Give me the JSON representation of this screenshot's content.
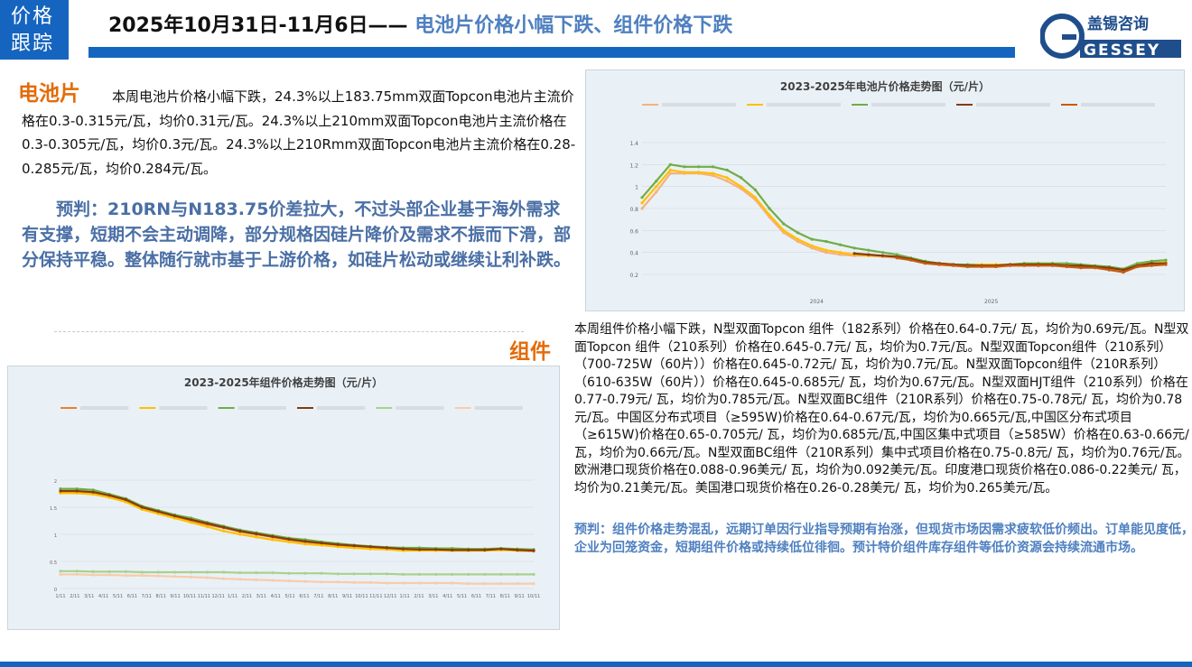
{
  "header": {
    "tag": "价格跟踪",
    "title_date": "2025年10月31日-11月6日",
    "title_dash": "——",
    "title_sub": "电池片价格小幅下跌、组件价格下跌",
    "logo_cn": "盖锡咨询",
    "logo_en": "GESSEY"
  },
  "cell": {
    "heading": "电池片",
    "body": "本周电池片价格小幅下跌，24.3%以上183.75mm双面Topcon电池片主流价格在0.3-0.315元/瓦，均价0.31元/瓦。24.3%以上210mm双面Topcon电池片主流价格在0.3-0.305元/瓦，均价0.3元/瓦。24.3%以上210Rmm双面Topcon电池片主流价格在0.28-0.285元/瓦，均价0.284元/瓦。",
    "forecast": "预判：210RN与N183.75价差拉大，不过头部企业基于海外需求有支撑，短期不会主动调降，部分规格因硅片降价及需求不振而下滑，部分保持平稳。整体随行就市基于上游价格，如硅片松动或继续让利补跌。"
  },
  "module": {
    "heading": "组件",
    "body": "本周组件价格小幅下跌，N型双面Topcon 组件（182系列）价格在0.64-0.7元/ 瓦，均价为0.69元/瓦。N型双面Topcon 组件（210系列）价格在0.645-0.7元/ 瓦，均价为0.7元/瓦。N型双面Topcon组件（210系列）（700-725W（60片））价格在0.645-0.72元/ 瓦，均价为0.7元/瓦。N型双面Topcon组件（210R系列）（610-635W（60片））价格在0.645-0.685元/ 瓦，均价为0.67元/瓦。N型双面HJT组件（210系列）价格在0.77-0.79元/ 瓦，均价为0.785元/瓦。N型双面BC组件（210R系列）价格在0.75-0.78元/ 瓦，均价为0.78元/瓦。中国区分布式项目（≥595W)价格在0.64-0.67元/瓦，均价为0.665元/瓦,中国区分布式项目（≥615W)价格在0.65-0.705元/ 瓦，均价为0.685元/瓦,中国区集中式项目（≥585W）价格在0.63-0.66元/ 瓦，均价为0.66元/瓦。N型双面BC组件（210R系列）集中式项目价格在0.75-0.8元/ 瓦，均价为0.76元/瓦。欧洲港口现货价格在0.088-0.96美元/ 瓦，均价为0.092美元/瓦。印度港口现货价格在0.086-0.22美元/ 瓦，均价为0.21美元/瓦。美国港口现货价格在0.26-0.28美元/ 瓦，均价为0.265美元/瓦。",
    "forecast": "预判：组件价格走势混乱，远期订单因行业指导预期有抬涨，但现货市场因需求疲软低价频出。订单能见度低，企业为回笼资金，短期组件价格或持续低位徘徊。预计特价组件库存组件等低价资源会持续流通市场。"
  },
  "chart_data": [
    {
      "type": "line",
      "title": "2023-2025年电池片价格走势图（元/片）",
      "ylim": [
        0.2,
        1.4
      ],
      "yticks": [
        "1.4",
        "1.2",
        "1",
        "0.8",
        "0.6",
        "0.4",
        "0.2"
      ],
      "xticks": [
        "2024",
        "2025"
      ],
      "grid": true,
      "legend_position": "top",
      "series": [
        {
          "color": "#f4b183",
          "values": [
            0.8,
            0.95,
            1.12,
            1.12,
            1.12,
            1.1,
            1.05,
            0.98,
            0.88,
            0.72,
            0.58,
            0.5,
            0.44,
            0.4,
            0.38,
            0.37,
            0.37,
            0.36,
            0.35,
            0.33,
            0.3,
            0.29,
            0.28,
            0.28,
            0.28,
            0.28,
            0.29,
            0.29,
            0.29,
            0.29,
            0.28,
            0.27,
            0.27,
            0.25,
            0.23,
            0.28,
            0.3,
            0.3
          ]
        },
        {
          "color": "#ffc000",
          "values": [
            0.85,
            1.0,
            1.15,
            1.13,
            1.13,
            1.12,
            1.08,
            1.0,
            0.9,
            0.74,
            0.6,
            0.52,
            0.46,
            0.42,
            0.4,
            0.38,
            0.37,
            0.37,
            0.36,
            0.34,
            0.31,
            0.3,
            0.29,
            0.29,
            0.29,
            0.29,
            0.29,
            0.3,
            0.3,
            0.3,
            0.29,
            0.28,
            0.28,
            0.26,
            0.24,
            0.29,
            0.3,
            0.31
          ]
        },
        {
          "color": "#70ad47",
          "values": [
            0.9,
            1.05,
            1.2,
            1.18,
            1.18,
            1.18,
            1.15,
            1.08,
            0.97,
            0.8,
            0.66,
            0.58,
            0.52,
            0.5,
            0.47,
            0.44,
            0.42,
            0.4,
            0.38,
            0.35,
            0.32,
            0.3,
            0.29,
            0.29,
            0.28,
            0.28,
            0.29,
            0.3,
            0.3,
            0.3,
            0.3,
            0.29,
            0.28,
            0.27,
            0.25,
            0.3,
            0.32,
            0.33
          ]
        },
        {
          "color": "#843c0c",
          "values": [
            null,
            null,
            null,
            null,
            null,
            null,
            null,
            null,
            null,
            null,
            null,
            null,
            null,
            null,
            null,
            0.39,
            0.38,
            0.37,
            0.36,
            0.34,
            0.31,
            0.3,
            0.29,
            0.28,
            0.28,
            0.28,
            0.29,
            0.29,
            0.29,
            0.29,
            0.28,
            0.28,
            0.27,
            0.26,
            0.24,
            0.28,
            0.3,
            0.3
          ]
        },
        {
          "color": "#c55a11",
          "values": [
            null,
            null,
            null,
            null,
            null,
            null,
            null,
            null,
            null,
            null,
            null,
            null,
            null,
            null,
            null,
            null,
            null,
            null,
            0.35,
            0.33,
            0.3,
            0.29,
            0.28,
            0.27,
            0.27,
            0.27,
            0.28,
            0.28,
            0.28,
            0.28,
            0.27,
            0.26,
            0.26,
            0.24,
            0.22,
            0.27,
            0.28,
            0.29
          ]
        }
      ]
    },
    {
      "type": "line",
      "title": "2023-2025年组件价格走势图（元/片）",
      "ylim": [
        0,
        2
      ],
      "yticks": [
        "2",
        "1.5",
        "1",
        "0.5",
        "0"
      ],
      "grid": true,
      "legend_position": "top",
      "series": [
        {
          "color": "#ed7d31",
          "values": [
            1.78,
            1.78,
            1.76,
            1.7,
            1.62,
            1.48,
            1.4,
            1.32,
            1.25,
            1.18,
            1.12,
            1.05,
            1.0,
            0.95,
            0.9,
            0.86,
            0.83,
            0.8,
            0.78,
            0.76,
            0.74,
            0.72,
            0.72,
            0.71,
            0.7,
            0.7,
            0.71,
            0.72,
            0.7,
            0.69
          ]
        },
        {
          "color": "#ffc000",
          "values": [
            1.76,
            1.76,
            1.74,
            1.68,
            1.6,
            1.46,
            1.38,
            1.3,
            1.22,
            1.14,
            1.06,
            1.0,
            0.95,
            0.9,
            0.86,
            0.82,
            0.8,
            0.77,
            0.75,
            0.73,
            0.72,
            0.7,
            0.7,
            0.7,
            0.7,
            0.7,
            0.7,
            0.71,
            0.7,
            0.7
          ]
        },
        {
          "color": "#70ad47",
          "values": [
            1.84,
            1.84,
            1.82,
            1.74,
            1.66,
            1.52,
            1.44,
            1.36,
            1.3,
            1.22,
            1.15,
            1.08,
            1.03,
            0.98,
            0.93,
            0.9,
            0.86,
            0.83,
            0.8,
            0.78,
            0.76,
            0.75,
            0.75,
            0.74,
            0.74,
            0.73,
            0.73,
            0.74,
            0.73,
            0.72
          ]
        },
        {
          "color": "#843c0c",
          "values": [
            1.8,
            1.8,
            1.78,
            1.72,
            1.64,
            1.5,
            1.42,
            1.34,
            1.27,
            1.2,
            1.13,
            1.06,
            1.01,
            0.96,
            0.91,
            0.87,
            0.84,
            0.81,
            0.79,
            0.77,
            0.75,
            0.73,
            0.72,
            0.72,
            0.71,
            0.71,
            0.71,
            0.73,
            0.71,
            0.7
          ]
        },
        {
          "color": "#a9d18e",
          "values": [
            0.32,
            0.32,
            0.31,
            0.31,
            0.31,
            0.3,
            0.3,
            0.3,
            0.3,
            0.3,
            0.3,
            0.29,
            0.29,
            0.29,
            0.28,
            0.28,
            0.28,
            0.27,
            0.27,
            0.27,
            0.27,
            0.26,
            0.26,
            0.26,
            0.26,
            0.26,
            0.26,
            0.26,
            0.26,
            0.26
          ]
        },
        {
          "color": "#f8cbad",
          "values": [
            0.26,
            0.26,
            0.25,
            0.25,
            0.24,
            0.24,
            0.23,
            0.22,
            0.21,
            0.2,
            0.18,
            0.17,
            0.16,
            0.15,
            0.14,
            0.13,
            0.12,
            0.12,
            0.11,
            0.11,
            0.1,
            0.1,
            0.1,
            0.1,
            0.1,
            0.09,
            0.09,
            0.09,
            0.09,
            0.09
          ]
        }
      ],
      "xticks": [
        "1/11",
        "2/11",
        "3/11",
        "4/11",
        "5/11",
        "6/11",
        "7/11",
        "8/11",
        "9/11",
        "10/11",
        "11/11",
        "12/11",
        "1/11",
        "2/11",
        "3/11",
        "4/11",
        "5/11",
        "6/11",
        "7/11",
        "8/11",
        "9/11",
        "10/11",
        "11/11",
        "12/11",
        "1/11",
        "2/11",
        "3/11",
        "4/11",
        "5/11",
        "6/11",
        "7/11",
        "8/11",
        "9/11",
        "10/11"
      ]
    }
  ]
}
